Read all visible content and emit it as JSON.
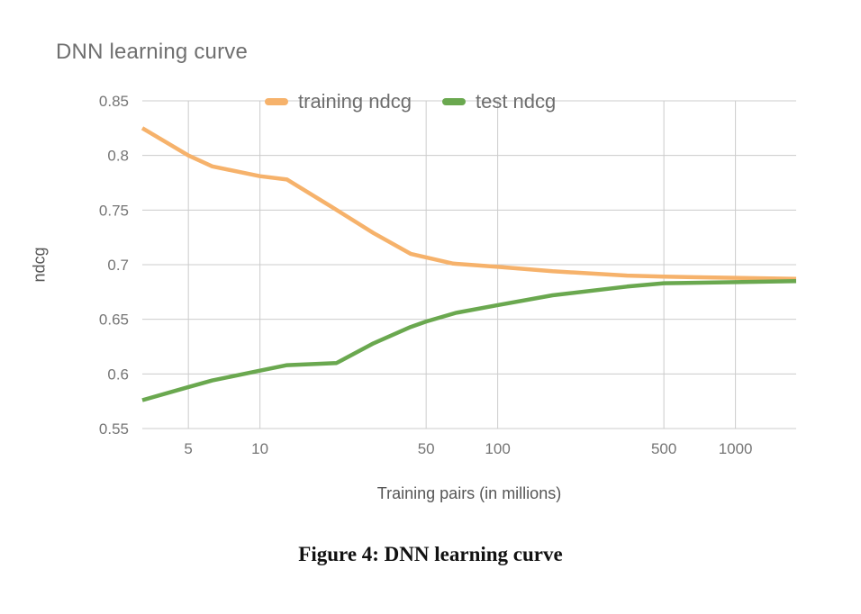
{
  "figure": {
    "caption": "Figure 4: DNN learning curve"
  },
  "chart_data": {
    "type": "line",
    "title": "DNN learning curve",
    "xlabel": "Training pairs (in millions)",
    "ylabel": "ndcg",
    "x_scale": "log",
    "xlim": [
      3.2,
      1800
    ],
    "ylim": [
      0.55,
      0.85
    ],
    "x_ticks": [
      5,
      10,
      50,
      100,
      500,
      1000
    ],
    "x_tick_labels": [
      "5",
      "10",
      "50",
      "100",
      "500",
      "1000"
    ],
    "y_ticks": [
      0.85,
      0.8,
      0.75,
      0.7,
      0.65,
      0.6,
      0.55
    ],
    "y_tick_labels": [
      "0.85",
      "0.8",
      "0.75",
      "0.7",
      "0.65",
      "0.6",
      "0.55"
    ],
    "grid": true,
    "gridline_color": "#cccccc",
    "tick_label_color": "#757575",
    "legend_position": "top-center-inside",
    "series": [
      {
        "name": "training ndcg",
        "color": "#f6b26b",
        "points": [
          [
            3.2,
            0.825
          ],
          [
            5,
            0.8
          ],
          [
            6.3,
            0.79
          ],
          [
            10,
            0.781
          ],
          [
            13,
            0.778
          ],
          [
            20,
            0.753
          ],
          [
            30,
            0.729
          ],
          [
            43,
            0.71
          ],
          [
            65,
            0.701
          ],
          [
            100,
            0.698
          ],
          [
            170,
            0.694
          ],
          [
            350,
            0.69
          ],
          [
            500,
            0.689
          ],
          [
            1000,
            0.688
          ],
          [
            1800,
            0.687
          ]
        ]
      },
      {
        "name": "test ndcg",
        "color": "#6aa84f",
        "points": [
          [
            3.2,
            0.576
          ],
          [
            5,
            0.588
          ],
          [
            6.3,
            0.594
          ],
          [
            10,
            0.603
          ],
          [
            13,
            0.608
          ],
          [
            21,
            0.61
          ],
          [
            30,
            0.628
          ],
          [
            43,
            0.643
          ],
          [
            50,
            0.648
          ],
          [
            67,
            0.656
          ],
          [
            100,
            0.663
          ],
          [
            170,
            0.672
          ],
          [
            350,
            0.68
          ],
          [
            500,
            0.683
          ],
          [
            1000,
            0.684
          ],
          [
            1800,
            0.685
          ]
        ]
      }
    ]
  }
}
